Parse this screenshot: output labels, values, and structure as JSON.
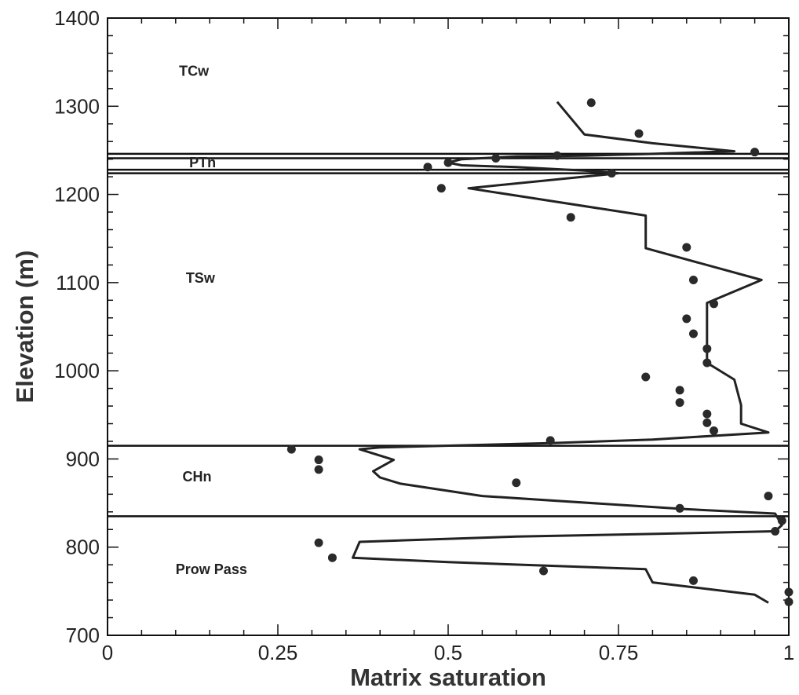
{
  "chart_data": {
    "type": "scatter",
    "title": "",
    "xlabel": "Matrix saturation",
    "ylabel": "Elevation (m)",
    "xlim": [
      0,
      1
    ],
    "ylim": [
      700,
      1400
    ],
    "x_ticks": [
      0,
      0.25,
      0.5,
      0.75,
      1
    ],
    "x_tick_labels": [
      "0",
      "0.25",
      "0.5",
      "0.75",
      "1"
    ],
    "y_ticks": [
      700,
      800,
      900,
      1000,
      1100,
      1200,
      1300,
      1400
    ],
    "y_tick_labels": [
      "700",
      "800",
      "900",
      "1000",
      "1100",
      "1200",
      "1300",
      "1400"
    ],
    "grid": false,
    "unit_boundaries": [
      1246,
      1241,
      1228,
      1224,
      915,
      835
    ],
    "units": [
      {
        "label": "TCw",
        "x": 0.105,
        "y": 1340
      },
      {
        "label": "PTn",
        "x": 0.12,
        "y": 1236
      },
      {
        "label": "TSw",
        "x": 0.115,
        "y": 1105
      },
      {
        "label": "CHn",
        "x": 0.11,
        "y": 880
      },
      {
        "label": "Prow Pass",
        "x": 0.1,
        "y": 775
      }
    ],
    "series": [
      {
        "kind": "line",
        "points": [
          [
            0.66,
            1305
          ],
          [
            0.7,
            1268
          ],
          [
            0.8,
            1258
          ],
          [
            0.92,
            1249
          ],
          [
            0.8,
            1246
          ],
          [
            0.7,
            1244
          ],
          [
            0.6,
            1243
          ],
          [
            0.52,
            1240
          ],
          [
            0.5,
            1236
          ],
          [
            0.52,
            1233
          ],
          [
            0.6,
            1231
          ],
          [
            0.7,
            1227
          ],
          [
            0.75,
            1224
          ],
          [
            0.53,
            1207
          ],
          [
            0.79,
            1176
          ],
          [
            0.79,
            1139
          ],
          [
            0.96,
            1103
          ],
          [
            0.88,
            1077
          ],
          [
            0.88,
            1009
          ],
          [
            0.92,
            990
          ],
          [
            0.93,
            961
          ],
          [
            0.93,
            940
          ],
          [
            0.97,
            930
          ],
          [
            0.8,
            922
          ],
          [
            0.65,
            918
          ],
          [
            0.4,
            913
          ],
          [
            0.37,
            911
          ],
          [
            0.42,
            899
          ],
          [
            0.39,
            886
          ],
          [
            0.4,
            879
          ],
          [
            0.43,
            872
          ],
          [
            0.55,
            858
          ],
          [
            0.85,
            843
          ],
          [
            0.98,
            838
          ],
          [
            0.99,
            825
          ],
          [
            0.98,
            818
          ],
          [
            0.8,
            815
          ],
          [
            0.6,
            812
          ],
          [
            0.37,
            806
          ],
          [
            0.36,
            788
          ],
          [
            0.5,
            783
          ],
          [
            0.79,
            775
          ],
          [
            0.8,
            760
          ],
          [
            0.95,
            746
          ],
          [
            0.97,
            737
          ]
        ]
      },
      {
        "kind": "scatter",
        "points": [
          [
            0.71,
            1304
          ],
          [
            0.78,
            1269
          ],
          [
            0.95,
            1248
          ],
          [
            0.66,
            1244
          ],
          [
            0.57,
            1241
          ],
          [
            0.5,
            1236
          ],
          [
            0.47,
            1231
          ],
          [
            0.74,
            1224
          ],
          [
            0.49,
            1207
          ],
          [
            0.68,
            1174
          ],
          [
            0.85,
            1140
          ],
          [
            0.86,
            1103
          ],
          [
            0.89,
            1076
          ],
          [
            0.85,
            1059
          ],
          [
            0.86,
            1042
          ],
          [
            0.88,
            1025
          ],
          [
            0.88,
            1009
          ],
          [
            0.79,
            993
          ],
          [
            0.84,
            978
          ],
          [
            0.84,
            964
          ],
          [
            0.88,
            951
          ],
          [
            0.88,
            941
          ],
          [
            0.89,
            932
          ],
          [
            0.65,
            921
          ],
          [
            0.27,
            911
          ],
          [
            0.31,
            899
          ],
          [
            0.31,
            888
          ],
          [
            0.6,
            873
          ],
          [
            0.97,
            858
          ],
          [
            0.84,
            844
          ],
          [
            0.99,
            830
          ],
          [
            0.98,
            818
          ],
          [
            0.31,
            805
          ],
          [
            0.33,
            788
          ],
          [
            0.64,
            773
          ],
          [
            0.86,
            762
          ],
          [
            1.0,
            749
          ],
          [
            1.0,
            738
          ]
        ]
      }
    ]
  }
}
